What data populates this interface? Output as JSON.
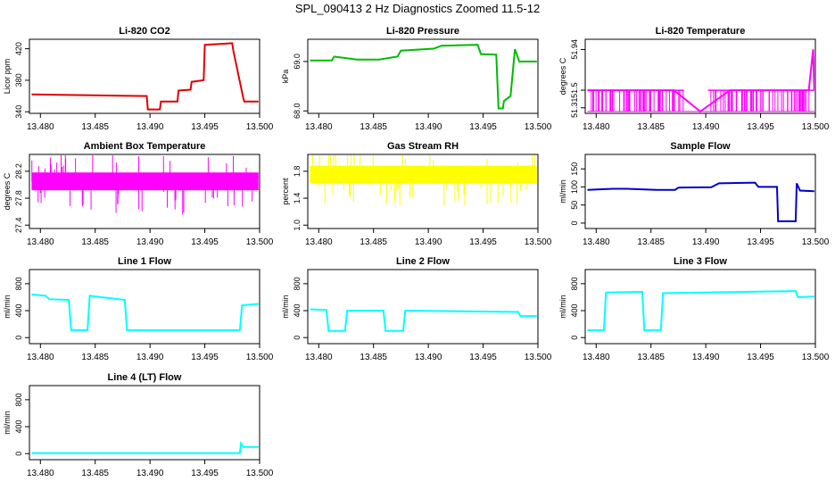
{
  "figure_title": "SPL_090413  2 Hz Diagnostics Zoomed 11.5-12",
  "chart_data": [
    {
      "type": "line",
      "title": "Li-820 CO2",
      "ylabel": "Licor ppm",
      "color": "#e00000",
      "xlim": [
        13.479,
        13.5
      ],
      "xticks": [
        "13.480",
        "13.485",
        "13.490",
        "13.495",
        "13.500"
      ],
      "yticks": [
        {
          "v": 340,
          "label": "340"
        },
        {
          "v": 380,
          "label": "380"
        },
        {
          "v": 420,
          "label": "420"
        }
      ],
      "ylim": [
        338,
        432
      ],
      "series": [
        {
          "x": [
            13.4792,
            13.4897,
            13.4898,
            13.4909,
            13.491,
            13.4925,
            13.4926,
            13.4937,
            13.4938,
            13.4949,
            13.495,
            13.4975,
            13.4976,
            13.4985,
            13.4986,
            13.4999
          ],
          "y": [
            362,
            360,
            343,
            343,
            353,
            353,
            367,
            368,
            378,
            380,
            425,
            427,
            418,
            358,
            353,
            353
          ]
        }
      ]
    },
    {
      "type": "line",
      "title": "Li-820 Pressure",
      "ylabel": "kPa",
      "color": "#00bb00",
      "xlim": [
        13.479,
        13.5
      ],
      "xticks": [
        "13.480",
        "13.485",
        "13.490",
        "13.495",
        "13.500"
      ],
      "yticks": [
        {
          "v": 68.0,
          "label": "68.0"
        },
        {
          "v": 69.0,
          "label": "69.0"
        }
      ],
      "ylim": [
        67.95,
        69.45
      ],
      "series": [
        {
          "x": [
            13.4792,
            13.4812,
            13.4814,
            13.4835,
            13.4855,
            13.4872,
            13.4875,
            13.4905,
            13.4912,
            13.4945,
            13.4948,
            13.4962,
            13.4964,
            13.4968,
            13.4969,
            13.4975,
            13.4979,
            13.4983,
            13.4999
          ],
          "y": [
            69.02,
            69.02,
            69.1,
            69.04,
            69.04,
            69.1,
            69.22,
            69.26,
            69.32,
            69.34,
            69.15,
            69.14,
            68.05,
            68.05,
            68.2,
            68.3,
            69.25,
            69.0,
            69.0
          ]
        }
      ]
    },
    {
      "type": "line",
      "title": "Li-820 Temperature",
      "ylabel": "degrees C",
      "color": "#ff00ff",
      "xlim": [
        13.479,
        13.5
      ],
      "xticks": [
        "13.480",
        "13.485",
        "13.490",
        "13.495",
        "13.500"
      ],
      "yticks": [
        {
          "v": 51.31,
          "label": "51.31"
        },
        {
          "v": 51.5,
          "label": "51.5"
        },
        {
          "v": 51.94,
          "label": "51.94"
        }
      ],
      "ylim": [
        51.25,
        52.05
      ],
      "series": [
        {
          "x": [
            13.4792,
            13.4805,
            13.4822,
            13.4845,
            13.4871,
            13.4895,
            13.4922,
            13.4942,
            13.4962,
            13.4985,
            13.4994,
            13.4998,
            13.4999
          ],
          "y": [
            51.5,
            51.5,
            51.5,
            51.5,
            51.5,
            51.27,
            51.5,
            51.5,
            51.5,
            51.5,
            51.5,
            51.94,
            51.5
          ]
        }
      ]
    },
    {
      "type": "line",
      "title": "Ambient Box Temperature",
      "ylabel": "degrees C",
      "color": "#ff00ff",
      "xlim": [
        13.479,
        13.5
      ],
      "xticks": [
        "13.480",
        "13.485",
        "13.490",
        "13.495",
        "13.500"
      ],
      "yticks": [
        {
          "v": 27.4,
          "label": "27.4"
        },
        {
          "v": 27.8,
          "label": "27.8"
        },
        {
          "v": 28.2,
          "label": "28.2"
        }
      ],
      "ylim": [
        27.35,
        28.45
      ],
      "series": [
        {
          "x": [
            13.4792,
            13.4805,
            13.482,
            13.4835,
            13.485,
            13.487,
            13.489,
            13.491,
            13.493,
            13.495,
            13.497,
            13.4999
          ],
          "y": [
            28.05,
            28.02,
            28.05,
            28.05,
            28.02,
            28.05,
            28.05,
            28.05,
            28.02,
            28.05,
            28.05,
            28.12
          ]
        }
      ]
    },
    {
      "type": "line",
      "title": "Gas Stream RH",
      "ylabel": "percent",
      "color": "#ffff00",
      "xlim": [
        13.479,
        13.5
      ],
      "xticks": [
        "13.480",
        "13.485",
        "13.490",
        "13.495",
        "13.500"
      ],
      "yticks": [
        {
          "v": 1.0,
          "label": "1.0"
        },
        {
          "v": 1.4,
          "label": "1.4"
        },
        {
          "v": 1.8,
          "label": "1.8"
        }
      ],
      "ylim": [
        0.95,
        2.05
      ],
      "series": [
        {
          "x": [
            13.4792,
            13.4999
          ],
          "y": [
            1.75,
            1.75
          ]
        }
      ]
    },
    {
      "type": "line",
      "title": "Sample Flow",
      "ylabel": "ml/min",
      "color": "#0000cc",
      "xlim": [
        13.479,
        13.5
      ],
      "xticks": [
        "13.480",
        "13.485",
        "13.490",
        "13.495",
        "13.500"
      ],
      "yticks": [
        {
          "v": 0,
          "label": "0"
        },
        {
          "v": 50,
          "label": "50"
        },
        {
          "v": 100,
          "label": "100"
        },
        {
          "v": 150,
          "label": "150"
        }
      ],
      "ylim": [
        -15,
        190
      ],
      "series": [
        {
          "x": [
            13.4792,
            13.4815,
            13.4828,
            13.4855,
            13.4872,
            13.4875,
            13.4905,
            13.4912,
            13.4945,
            13.4948,
            13.4965,
            13.4966,
            13.4982,
            13.4983,
            13.4986,
            13.4999
          ],
          "y": [
            92,
            95,
            95,
            92,
            92,
            98,
            99,
            110,
            112,
            100,
            100,
            5,
            5,
            110,
            90,
            88
          ]
        }
      ]
    },
    {
      "type": "line",
      "title": "Line 1 Flow",
      "ylabel": "ml/min",
      "color": "#00ffff",
      "xlim": [
        13.479,
        13.5
      ],
      "xticks": [
        "13.480",
        "13.485",
        "13.490",
        "13.495",
        "13.500"
      ],
      "yticks": [
        {
          "v": 0,
          "label": "0"
        },
        {
          "v": 400,
          "label": "400"
        },
        {
          "v": 800,
          "label": "800"
        }
      ],
      "ylim": [
        -90,
        1010
      ],
      "series": [
        {
          "x": [
            13.4792,
            13.4805,
            13.4808,
            13.4826,
            13.4828,
            13.4843,
            13.4845,
            13.4877,
            13.4879,
            13.4982,
            13.4984,
            13.4999
          ],
          "y": [
            640,
            620,
            570,
            560,
            110,
            110,
            620,
            560,
            110,
            110,
            480,
            500
          ]
        }
      ]
    },
    {
      "type": "line",
      "title": "Line 2 Flow",
      "ylabel": "ml/min",
      "color": "#00ffff",
      "xlim": [
        13.479,
        13.5
      ],
      "xticks": [
        "13.480",
        "13.485",
        "13.490",
        "13.495",
        "13.500"
      ],
      "yticks": [
        {
          "v": 0,
          "label": "0"
        },
        {
          "v": 400,
          "label": "400"
        },
        {
          "v": 800,
          "label": "800"
        }
      ],
      "ylim": [
        -90,
        1010
      ],
      "series": [
        {
          "x": [
            13.4792,
            13.4807,
            13.4809,
            13.4824,
            13.4826,
            13.4859,
            13.4861,
            13.4877,
            13.4879,
            13.4982,
            13.4984,
            13.4999
          ],
          "y": [
            420,
            410,
            100,
            100,
            400,
            400,
            100,
            100,
            400,
            380,
            320,
            320
          ]
        }
      ]
    },
    {
      "type": "line",
      "title": "Line 3 Flow",
      "ylabel": "ml/min",
      "color": "#00ffff",
      "xlim": [
        13.479,
        13.5
      ],
      "xticks": [
        "13.480",
        "13.485",
        "13.490",
        "13.495",
        "13.500"
      ],
      "yticks": [
        {
          "v": 0,
          "label": "0"
        },
        {
          "v": 400,
          "label": "400"
        },
        {
          "v": 800,
          "label": "800"
        }
      ],
      "ylim": [
        -90,
        1010
      ],
      "series": [
        {
          "x": [
            13.4792,
            13.4807,
            13.4809,
            13.4842,
            13.4844,
            13.4859,
            13.4861,
            13.4982,
            13.4984,
            13.4999
          ],
          "y": [
            110,
            110,
            670,
            680,
            110,
            110,
            660,
            690,
            600,
            610
          ]
        }
      ]
    },
    {
      "type": "line",
      "title": "Line 4 (LT) Flow",
      "ylabel": "ml/min",
      "color": "#00ffff",
      "xlim": [
        13.479,
        13.5
      ],
      "xticks": [
        "13.480",
        "13.485",
        "13.490",
        "13.495",
        "13.500"
      ],
      "yticks": [
        {
          "v": 0,
          "label": "0"
        },
        {
          "v": 400,
          "label": "400"
        },
        {
          "v": 800,
          "label": "800"
        }
      ],
      "ylim": [
        -90,
        1010
      ],
      "series": [
        {
          "x": [
            13.4792,
            13.4982,
            13.4983,
            13.4985,
            13.4999
          ],
          "y": [
            8,
            8,
            150,
            100,
            100
          ]
        }
      ]
    }
  ]
}
